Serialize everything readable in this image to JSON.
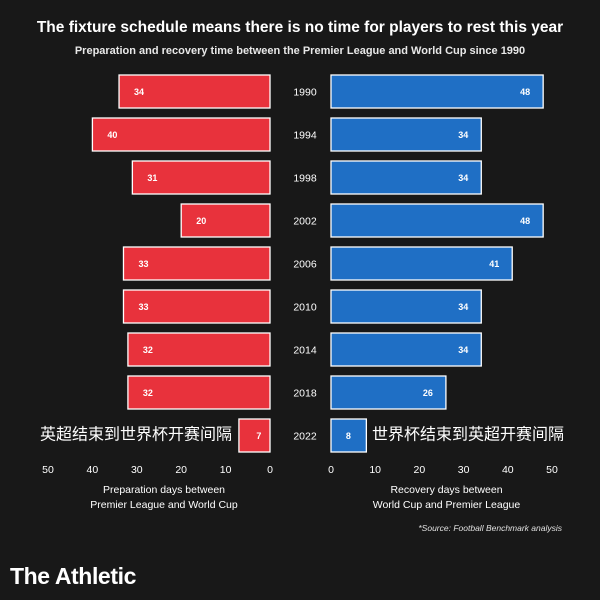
{
  "header": {
    "title": "The fixture schedule means there is no time for players to rest this year",
    "subtitle": "Preparation and recovery time between the Premier League and World Cup since 1990"
  },
  "footer": {
    "source": "*Source: Football Benchmark analysis",
    "brand": "The Athletic"
  },
  "colors": {
    "background": "#181818",
    "preparation": "#e8323c",
    "recovery": "#1f6fc5",
    "bar_outline": "#ffffff"
  },
  "chart_data": {
    "type": "bar",
    "orientation": "horizontal-butterfly",
    "categories": [
      "1990",
      "1994",
      "1998",
      "2002",
      "2006",
      "2010",
      "2014",
      "2018",
      "2022"
    ],
    "series": [
      {
        "key": "preparation",
        "values": [
          34,
          40,
          31,
          20,
          33,
          33,
          32,
          32,
          7
        ],
        "xlim": [
          50,
          0
        ],
        "xticks": [
          50,
          40,
          30,
          20,
          10,
          0
        ],
        "xlabel": [
          "Preparation days between",
          "Premier League and World Cup"
        ],
        "annotation": "英超结束到世界杯开赛间隔"
      },
      {
        "key": "recovery",
        "values": [
          48,
          34,
          34,
          48,
          41,
          34,
          34,
          26,
          8
        ],
        "xlim": [
          0,
          50
        ],
        "xticks": [
          0,
          10,
          20,
          30,
          40,
          50
        ],
        "xlabel": [
          "Recovery days between",
          "World Cup and Premier League"
        ],
        "annotation": "世界杯结束到英超开赛间隔"
      }
    ],
    "grid": false,
    "legend": "none"
  }
}
